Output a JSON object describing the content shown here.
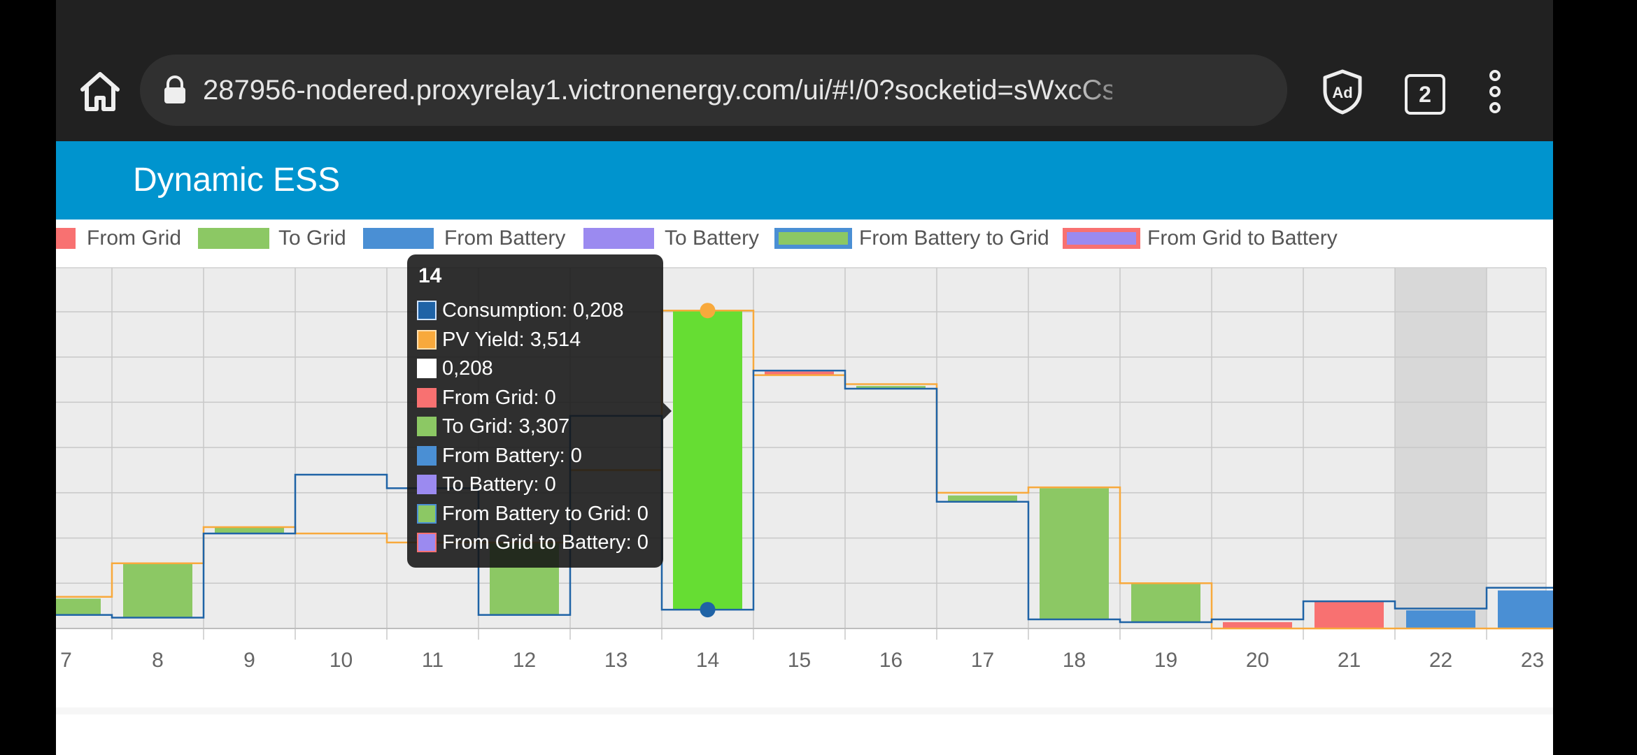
{
  "browser": {
    "url": "287956-nodered.proxyrelay1.victronenergy.com/ui/#!/0?socketid=sWxcCs",
    "tab_count": "2",
    "icons": [
      "home-icon",
      "lock-icon",
      "ad-block-shield-icon",
      "tabs-icon",
      "more-vert-icon"
    ]
  },
  "app": {
    "title": "Dynamic ESS",
    "header_color": "#0094ce"
  },
  "legend": [
    {
      "label": "From Grid",
      "fill": "#f87171",
      "border": "#f87171"
    },
    {
      "label": "To Grid",
      "fill": "#8cc864",
      "border": "#8cc864"
    },
    {
      "label": "From Battery",
      "fill": "#4a8fd4",
      "border": "#4a8fd4"
    },
    {
      "label": "To Battery",
      "fill": "#9b8af0",
      "border": "#9b8af0"
    },
    {
      "label": "From Battery to Grid",
      "fill": "#8cc864",
      "border": "#4a8fd4"
    },
    {
      "label": "From Grid to Battery",
      "fill": "#9b8af0",
      "border": "#f87171"
    }
  ],
  "tooltip": {
    "title": "14",
    "rows": [
      {
        "text": "Consumption: 0,208",
        "fill": "#1f63a6",
        "border": "#cfe3ff"
      },
      {
        "text": "PV Yield: 3,514",
        "fill": "#f8a93c",
        "border": "#ffe0b0"
      },
      {
        "text": "0,208",
        "fill": "#ffffff",
        "border": "#ffffff"
      },
      {
        "text": "From Grid: 0",
        "fill": "#f87171",
        "border": "#f87171"
      },
      {
        "text": "To Grid: 3,307",
        "fill": "#8cc864",
        "border": "#8cc864"
      },
      {
        "text": "From Battery: 0",
        "fill": "#4a8fd4",
        "border": "#4a8fd4"
      },
      {
        "text": "To Battery: 0",
        "fill": "#9b8af0",
        "border": "#9b8af0"
      },
      {
        "text": "From Battery to Grid: 0",
        "fill": "#8cc864",
        "border": "#4a8fd4"
      },
      {
        "text": "From Grid to Battery: 0",
        "fill": "#9b8af0",
        "border": "#f87171"
      }
    ]
  },
  "chart_data": {
    "type": "bar",
    "categories": [
      "7",
      "8",
      "9",
      "10",
      "11",
      "12",
      "13",
      "14",
      "15",
      "16",
      "17",
      "18",
      "19",
      "20",
      "21",
      "22",
      "23"
    ],
    "ylim": [
      0,
      3.5
    ],
    "grid": true,
    "highlighted_category": "14",
    "shaded_category": "22",
    "series": [
      {
        "name": "Consumption",
        "type": "step",
        "color": "#1f63a6",
        "values": [
          0.15,
          0.12,
          1.05,
          1.7,
          1.55,
          0.15,
          2.35,
          0.208,
          2.85,
          2.65,
          1.4,
          0.1,
          0.07,
          0.1,
          0.3,
          0.22,
          0.45
        ]
      },
      {
        "name": "PV Yield",
        "type": "step",
        "color": "#f8a93c",
        "values": [
          0.35,
          0.72,
          1.12,
          1.05,
          0.95,
          0.95,
          1.75,
          3.514,
          2.8,
          2.7,
          1.5,
          1.56,
          0.5,
          0.0,
          0.0,
          0.0,
          0.0
        ]
      },
      {
        "name": "To Grid",
        "color": "#8cc864",
        "values": [
          0.18,
          0.6,
          0.07,
          0.0,
          0.0,
          0.8,
          0.0,
          3.307,
          0.0,
          0.03,
          0.07,
          1.45,
          0.43,
          0.0,
          0.0,
          0.0,
          0.0
        ]
      },
      {
        "name": "From Grid",
        "color": "#f87171",
        "values": [
          0.0,
          0.0,
          0.0,
          0.0,
          0.0,
          0.0,
          0.0,
          0.0,
          0.04,
          0.0,
          0.0,
          0.0,
          0.0,
          0.07,
          0.3,
          0.0,
          0.0
        ]
      },
      {
        "name": "From Battery",
        "color": "#4a8fd4",
        "values": [
          0.0,
          0.0,
          0.0,
          0.0,
          0.0,
          0.0,
          0.0,
          0.0,
          0.0,
          0.0,
          0.0,
          0.0,
          0.0,
          0.0,
          0.0,
          0.2,
          0.42
        ]
      }
    ]
  }
}
